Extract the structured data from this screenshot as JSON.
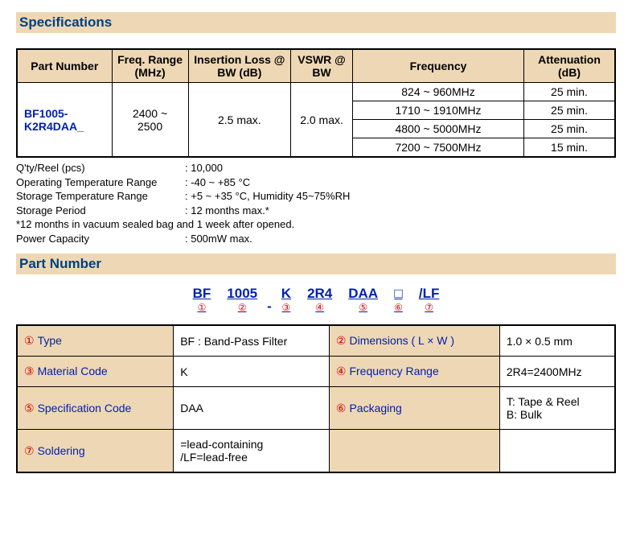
{
  "headers": {
    "specifications": "Specifications",
    "partNumber": "Part Number"
  },
  "specTable": {
    "columns": {
      "partNumber": "Part Number",
      "freqRange": "Freq. Range (MHz)",
      "insertionLoss": "Insertion Loss @ BW (dB)",
      "vswr": "VSWR @ BW",
      "frequency": "Frequency",
      "attenuation": "Attenuation (dB)"
    },
    "partNumber": "BF1005-K2R4DAA_",
    "freqRange": "2400 ~ 2500",
    "insertionLoss": "2.5 max.",
    "vswr": "2.0 max.",
    "attenRows": [
      {
        "freq": "824 ~ 960MHz",
        "att": "25 min."
      },
      {
        "freq": "1710 ~ 1910MHz",
        "att": "25 min."
      },
      {
        "freq": "4800 ~ 5000MHz",
        "att": "25 min."
      },
      {
        "freq": "7200 ~ 7500MHz",
        "att": "15 min."
      }
    ]
  },
  "notes": {
    "qtyReelLabel": "Q'ty/Reel (pcs)",
    "qtyReel": ": 10,000",
    "opTempLabel": "Operating Temperature Range",
    "opTemp": ": -40 ~ +85 °C",
    "stTempLabel": "Storage Temperature Range",
    "stTemp": ": +5 ~ +35 °C, Humidity 45~75%RH",
    "stPeriodLabel": "Storage Period",
    "stPeriod": ": 12 months max.*",
    "footnote": "*12 months in vacuum sealed bag and 1 week after opened.",
    "powerLabel": "Power Capacity",
    "power": ": 500mW max."
  },
  "pnSegments": [
    {
      "txt": "BF",
      "num": "①"
    },
    {
      "txt": "1005",
      "num": "②"
    },
    {
      "sep": "-"
    },
    {
      "txt": "K",
      "num": "③"
    },
    {
      "txt": "2R4",
      "num": "④"
    },
    {
      "txt": "DAA",
      "num": "⑤"
    },
    {
      "txt": "□",
      "num": "⑥"
    },
    {
      "txt": "/LF",
      "num": "⑦"
    }
  ],
  "pnTable": [
    [
      {
        "num": "①",
        "key": "Type",
        "val": "BF : Band-Pass Filter"
      },
      {
        "num": "②",
        "key": "Dimensions ( L × W )",
        "val": "1.0 × 0.5 mm"
      }
    ],
    [
      {
        "num": "③",
        "key": "Material Code",
        "val": "K"
      },
      {
        "num": "④",
        "key": "Frequency Range",
        "val": "2R4=2400MHz"
      }
    ],
    [
      {
        "num": "⑤",
        "key": "Specification Code",
        "val": "DAA"
      },
      {
        "num": "⑥",
        "key": "Packaging",
        "val": "T: Tape & Reel\nB: Bulk"
      }
    ],
    [
      {
        "num": "⑦",
        "key": "Soldering",
        "val": "     =lead-containing\n/LF=lead-free"
      },
      {
        "key": "",
        "val": ""
      }
    ]
  ]
}
